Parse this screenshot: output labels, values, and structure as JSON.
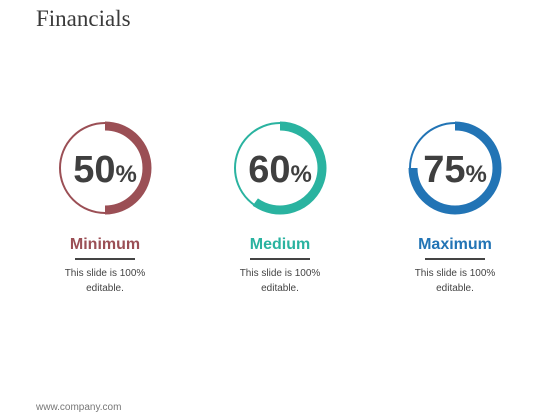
{
  "slide": {
    "title": "Financials",
    "footer": "www.company.com"
  },
  "cards": [
    {
      "value": "50",
      "symbol": "%",
      "fraction": 0.5,
      "label": "Minimum",
      "desc_line1": "This slide is 100%",
      "desc_line2": "editable.",
      "color": "#9b4f55"
    },
    {
      "value": "60",
      "symbol": "%",
      "fraction": 0.6,
      "label": "Medium",
      "desc_line1": "This slide is 100%",
      "desc_line2": "editable.",
      "color": "#2ab3a0"
    },
    {
      "value": "75",
      "symbol": "%",
      "fraction": 0.75,
      "label": "Maximum",
      "desc_line1": "This slide is 100%",
      "desc_line2": "editable.",
      "color": "#2274b5"
    }
  ]
}
